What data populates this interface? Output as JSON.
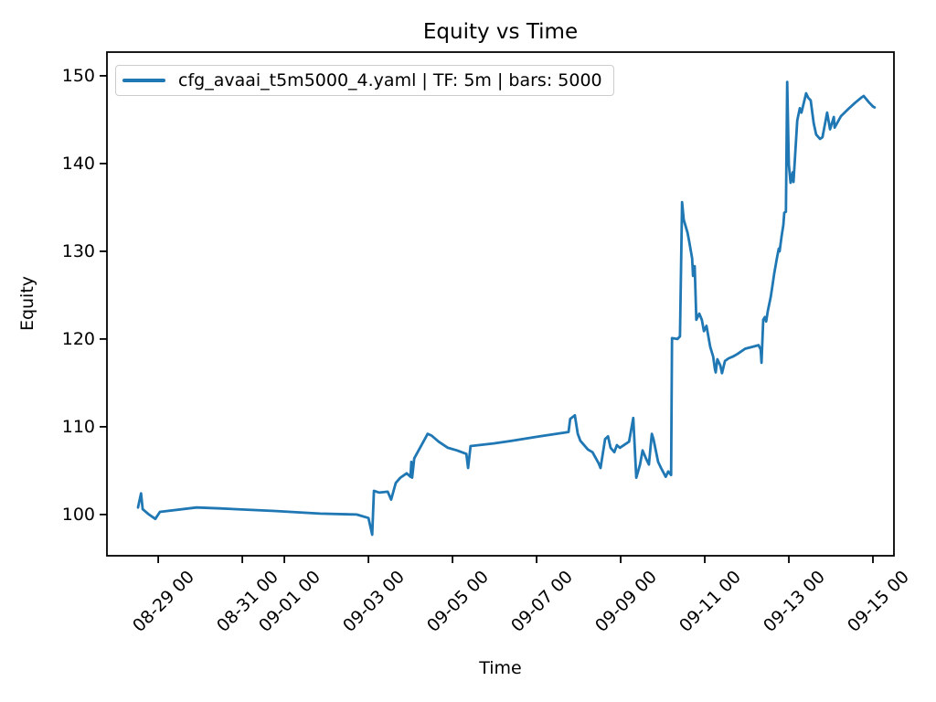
{
  "figure": {
    "title": "Equity vs Time",
    "x_axis_label": "Time",
    "y_axis_label": "Equity",
    "background_color": "#ffffff",
    "text_color": "#000000",
    "spine_color": "#000000",
    "legend": {
      "label": "cfg_avaai_t5m5000_4.yaml | TF: 5m | bars: 5000",
      "line_color": "#1f77b4",
      "border_color": "#cccccc"
    }
  },
  "chart_data": {
    "type": "line",
    "title": "Equity vs Time",
    "xlabel": "Time",
    "ylabel": "Equity",
    "grid": false,
    "legend_position": "upper left",
    "x_unit_note": "x values are days since 08-28 00:00",
    "xlim": [
      -0.22,
      18.5
    ],
    "ylim": [
      95.3,
      152.7
    ],
    "y_ticks": [
      100,
      110,
      120,
      130,
      140,
      150
    ],
    "x_ticks": [
      {
        "t": 1,
        "label": "08-29 00"
      },
      {
        "t": 3,
        "label": "08-31 00"
      },
      {
        "t": 4,
        "label": "09-01 00"
      },
      {
        "t": 6,
        "label": "09-03 00"
      },
      {
        "t": 8,
        "label": "09-05 00"
      },
      {
        "t": 10,
        "label": "09-07 00"
      },
      {
        "t": 12,
        "label": "09-09 00"
      },
      {
        "t": 14,
        "label": "09-11 00"
      },
      {
        "t": 16,
        "label": "09-13 00"
      },
      {
        "t": 18,
        "label": "09-15 00"
      }
    ],
    "series": [
      {
        "name": "cfg_avaai_t5m5000_4.yaml | TF: 5m | bars: 5000",
        "color": "#1f77b4",
        "line_width": 2.8,
        "points": [
          [
            0.52,
            100.8
          ],
          [
            0.59,
            102.4
          ],
          [
            0.63,
            100.6
          ],
          [
            0.78,
            100.0
          ],
          [
            0.93,
            99.5
          ],
          [
            1.04,
            100.3
          ],
          [
            1.91,
            100.8
          ],
          [
            2.46,
            100.7
          ],
          [
            3.76,
            100.4
          ],
          [
            4.85,
            100.1
          ],
          [
            5.72,
            100.0
          ],
          [
            6.0,
            99.6
          ],
          [
            6.09,
            97.7
          ],
          [
            6.13,
            102.7
          ],
          [
            6.26,
            102.5
          ],
          [
            6.46,
            102.6
          ],
          [
            6.54,
            101.7
          ],
          [
            6.65,
            103.6
          ],
          [
            6.76,
            104.2
          ],
          [
            6.91,
            104.7
          ],
          [
            7.0,
            104.3
          ],
          [
            7.02,
            106.0
          ],
          [
            7.04,
            104.2
          ],
          [
            7.09,
            106.4
          ],
          [
            7.17,
            107.1
          ],
          [
            7.41,
            109.2
          ],
          [
            7.5,
            109.0
          ],
          [
            7.67,
            108.3
          ],
          [
            7.89,
            107.6
          ],
          [
            8.11,
            107.3
          ],
          [
            8.33,
            106.9
          ],
          [
            8.37,
            105.3
          ],
          [
            8.43,
            107.8
          ],
          [
            8.98,
            108.1
          ],
          [
            9.41,
            108.4
          ],
          [
            10.07,
            108.9
          ],
          [
            10.76,
            109.4
          ],
          [
            10.8,
            110.9
          ],
          [
            10.91,
            111.3
          ],
          [
            10.98,
            109.2
          ],
          [
            11.04,
            108.4
          ],
          [
            11.22,
            107.4
          ],
          [
            11.33,
            107.1
          ],
          [
            11.48,
            105.8
          ],
          [
            11.52,
            105.3
          ],
          [
            11.63,
            108.6
          ],
          [
            11.7,
            108.9
          ],
          [
            11.76,
            107.6
          ],
          [
            11.85,
            107.1
          ],
          [
            11.91,
            107.9
          ],
          [
            11.98,
            107.6
          ],
          [
            12.2,
            108.3
          ],
          [
            12.3,
            111.0
          ],
          [
            12.37,
            104.2
          ],
          [
            12.46,
            105.7
          ],
          [
            12.52,
            107.3
          ],
          [
            12.61,
            106.3
          ],
          [
            12.67,
            105.7
          ],
          [
            12.74,
            109.2
          ],
          [
            12.78,
            108.6
          ],
          [
            12.89,
            106.0
          ],
          [
            12.96,
            105.3
          ],
          [
            13.07,
            104.3
          ],
          [
            13.13,
            104.9
          ],
          [
            13.2,
            104.5
          ],
          [
            13.22,
            120.1
          ],
          [
            13.35,
            120.0
          ],
          [
            13.41,
            120.3
          ],
          [
            13.46,
            135.6
          ],
          [
            13.5,
            133.6
          ],
          [
            13.59,
            132.1
          ],
          [
            13.63,
            131.1
          ],
          [
            13.7,
            129.2
          ],
          [
            13.72,
            127.2
          ],
          [
            13.76,
            128.3
          ],
          [
            13.8,
            122.2
          ],
          [
            13.87,
            122.9
          ],
          [
            13.93,
            122.2
          ],
          [
            13.98,
            120.9
          ],
          [
            14.04,
            121.5
          ],
          [
            14.13,
            119.1
          ],
          [
            14.2,
            118.0
          ],
          [
            14.24,
            116.6
          ],
          [
            14.26,
            116.2
          ],
          [
            14.3,
            117.7
          ],
          [
            14.37,
            117.0
          ],
          [
            14.41,
            116.1
          ],
          [
            14.48,
            117.5
          ],
          [
            14.57,
            117.8
          ],
          [
            14.67,
            118.0
          ],
          [
            14.78,
            118.3
          ],
          [
            14.96,
            118.9
          ],
          [
            15.13,
            119.1
          ],
          [
            15.28,
            119.3
          ],
          [
            15.33,
            118.8
          ],
          [
            15.35,
            117.3
          ],
          [
            15.39,
            122.2
          ],
          [
            15.43,
            122.5
          ],
          [
            15.46,
            122.0
          ],
          [
            15.5,
            123.2
          ],
          [
            15.57,
            124.8
          ],
          [
            15.61,
            126.1
          ],
          [
            15.65,
            127.4
          ],
          [
            15.72,
            129.3
          ],
          [
            15.76,
            130.3
          ],
          [
            15.78,
            130.0
          ],
          [
            15.83,
            131.8
          ],
          [
            15.87,
            133.0
          ],
          [
            15.89,
            134.4
          ],
          [
            15.93,
            134.5
          ],
          [
            15.96,
            149.3
          ],
          [
            16.0,
            139.9
          ],
          [
            16.04,
            137.8
          ],
          [
            16.09,
            139.0
          ],
          [
            16.11,
            137.9
          ],
          [
            16.2,
            144.9
          ],
          [
            16.26,
            146.3
          ],
          [
            16.3,
            145.8
          ],
          [
            16.41,
            148.0
          ],
          [
            16.46,
            147.5
          ],
          [
            16.52,
            147.2
          ],
          [
            16.59,
            144.6
          ],
          [
            16.65,
            143.3
          ],
          [
            16.74,
            142.8
          ],
          [
            16.8,
            143.0
          ],
          [
            16.91,
            145.8
          ],
          [
            16.98,
            143.9
          ],
          [
            17.07,
            145.3
          ],
          [
            17.09,
            144.1
          ],
          [
            17.24,
            145.4
          ],
          [
            17.41,
            146.2
          ],
          [
            17.57,
            146.9
          ],
          [
            17.72,
            147.5
          ],
          [
            17.78,
            147.7
          ],
          [
            17.9,
            147.0
          ],
          [
            18.0,
            146.5
          ],
          [
            18.04,
            146.4
          ]
        ]
      }
    ]
  }
}
